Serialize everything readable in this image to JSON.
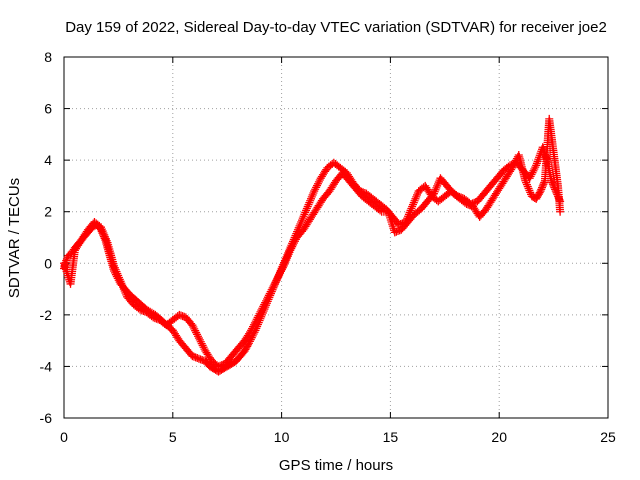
{
  "chart_data": {
    "type": "scatter",
    "title": "Day 159 of 2022, Sidereal Day-to-day VTEC variation (SDTVAR) for receiver joe2",
    "xlabel": "GPS time / hours",
    "ylabel": "SDTVAR / TECUs",
    "xlim": [
      0,
      25
    ],
    "ylim": [
      -6,
      8
    ],
    "xticks": [
      0,
      5,
      10,
      15,
      20,
      25
    ],
    "yticks": [
      -6,
      -4,
      -2,
      0,
      2,
      4,
      6,
      8
    ],
    "grid": true,
    "marker": "+",
    "series_color": "#ff0000",
    "series": [
      {
        "name": "SDTVAR",
        "x": [
          0.0,
          0.1,
          0.2,
          0.35,
          0.5,
          0.7,
          0.9,
          1.1,
          1.3,
          1.5,
          1.7,
          1.9,
          2.1,
          2.3,
          2.6,
          3.0,
          3.4,
          3.8,
          4.2,
          4.6,
          5.0,
          5.3,
          5.6,
          5.9,
          6.2,
          6.5,
          6.7,
          6.9,
          7.1,
          7.3,
          7.5,
          7.7,
          7.9,
          8.1,
          8.3,
          8.5,
          8.8,
          9.1,
          9.4,
          9.7,
          10.0,
          10.3,
          10.6,
          10.9,
          11.2,
          11.5,
          11.8,
          12.1,
          12.4,
          12.7,
          13.0,
          13.3,
          13.6,
          13.9,
          14.2,
          14.5,
          14.8,
          15.1,
          15.4,
          15.7,
          16.0,
          16.3,
          16.6,
          16.9,
          17.2,
          17.5,
          17.8,
          18.1,
          18.4,
          18.7,
          19.0,
          19.3,
          19.6,
          19.9,
          20.2,
          20.5,
          20.8,
          21.1,
          21.4,
          21.7,
          22.0,
          22.2,
          22.4,
          22.6,
          22.8
        ],
        "y": [
          -0.2,
          0.1,
          0.3,
          0.4,
          0.6,
          0.8,
          1.0,
          1.2,
          1.4,
          1.5,
          1.3,
          0.9,
          0.3,
          -0.3,
          -0.8,
          -1.2,
          -1.5,
          -1.8,
          -2.0,
          -2.3,
          -2.6,
          -3.0,
          -3.3,
          -3.6,
          -3.7,
          -3.8,
          -4.0,
          -4.1,
          -4.2,
          -4.1,
          -4.0,
          -3.9,
          -3.8,
          -3.6,
          -3.4,
          -3.1,
          -2.6,
          -2.0,
          -1.4,
          -0.8,
          -0.2,
          0.4,
          1.0,
          1.6,
          2.2,
          2.8,
          3.3,
          3.7,
          3.9,
          3.7,
          3.5,
          3.1,
          2.8,
          2.7,
          2.5,
          2.3,
          2.1,
          1.8,
          1.5,
          1.6,
          2.2,
          2.8,
          3.0,
          2.6,
          2.4,
          2.6,
          2.8,
          2.6,
          2.5,
          2.3,
          2.4,
          2.7,
          3.0,
          3.3,
          3.6,
          3.8,
          3.9,
          3.6,
          3.3,
          3.8,
          4.5,
          4.0,
          3.2,
          2.8,
          2.4
        ]
      },
      {
        "name": "SDTVAR",
        "x": [
          0.0,
          0.15,
          0.3,
          0.5,
          0.8,
          1.1,
          1.4,
          1.7,
          2.0,
          2.3,
          2.6,
          2.9,
          3.2,
          3.5,
          3.8,
          4.1,
          4.4,
          4.7,
          5.0,
          5.3,
          5.6,
          5.9,
          6.2,
          6.5,
          6.8,
          7.1,
          7.4,
          7.7,
          8.0,
          8.3,
          8.6,
          8.9,
          9.2,
          9.5,
          9.8,
          10.1,
          10.4,
          10.7,
          11.0,
          11.3,
          11.6,
          11.9,
          12.2,
          12.5,
          12.8,
          13.1,
          13.4,
          13.7,
          14.0,
          14.3,
          14.6,
          14.9,
          15.2,
          15.5,
          15.8,
          16.1,
          16.4,
          16.7,
          17.0,
          17.3,
          17.6,
          17.9,
          18.2,
          18.5,
          18.8,
          19.1,
          19.4,
          19.7,
          20.0,
          20.3,
          20.6,
          20.9,
          21.2,
          21.5,
          21.7,
          21.9,
          22.1,
          22.3,
          22.5,
          22.7,
          22.8
        ],
        "y": [
          0.0,
          -0.4,
          -0.8,
          0.5,
          0.9,
          1.3,
          1.6,
          1.4,
          0.8,
          -0.1,
          -0.7,
          -1.3,
          -1.6,
          -1.8,
          -1.9,
          -2.1,
          -2.2,
          -2.4,
          -2.2,
          -2.0,
          -2.1,
          -2.4,
          -2.9,
          -3.4,
          -3.8,
          -4.0,
          -3.9,
          -3.6,
          -3.3,
          -3.0,
          -2.6,
          -2.1,
          -1.6,
          -1.1,
          -0.6,
          -0.1,
          0.5,
          1.0,
          1.3,
          1.7,
          2.1,
          2.5,
          2.8,
          3.2,
          3.5,
          3.2,
          2.9,
          2.6,
          2.4,
          2.2,
          2.0,
          2.0,
          1.2,
          1.3,
          1.6,
          1.9,
          2.1,
          2.4,
          2.7,
          3.3,
          3.0,
          2.7,
          2.5,
          2.3,
          2.2,
          1.8,
          2.1,
          2.5,
          2.9,
          3.3,
          3.7,
          4.2,
          3.2,
          2.6,
          2.5,
          2.8,
          3.2,
          5.6,
          4.3,
          3.0,
          2.0
        ]
      }
    ]
  }
}
